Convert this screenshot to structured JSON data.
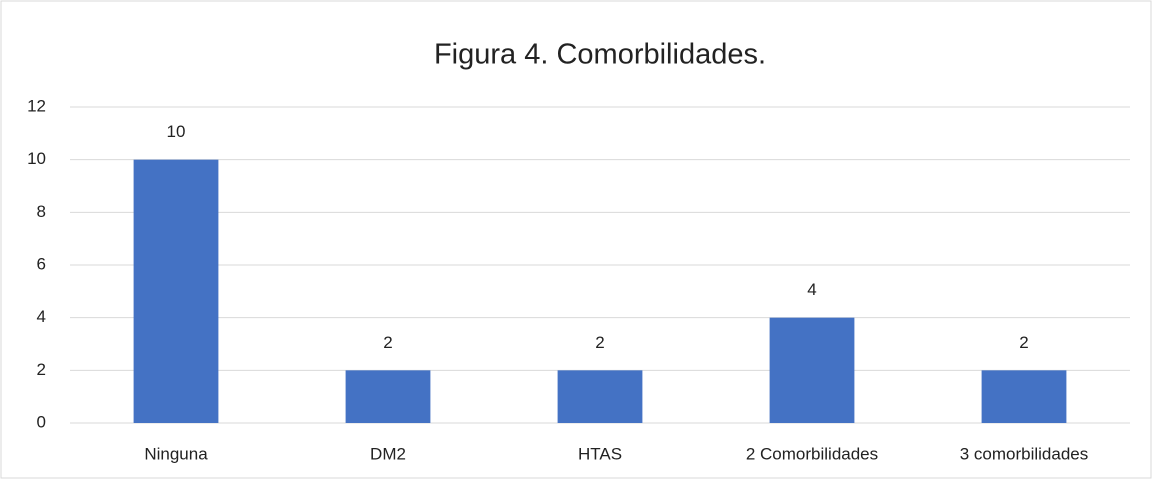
{
  "chart_data": {
    "type": "bar",
    "title": "Figura 4. Comorbilidades.",
    "categories": [
      "Ninguna",
      "DM2",
      "HTAS",
      "2 Comorbilidades",
      "3 comorbilidades"
    ],
    "values": [
      10,
      2,
      2,
      4,
      2
    ],
    "color": "#4472c4",
    "ylim": [
      0,
      12
    ],
    "yticks": [
      0,
      2,
      4,
      6,
      8,
      10,
      12
    ],
    "grid": true
  }
}
